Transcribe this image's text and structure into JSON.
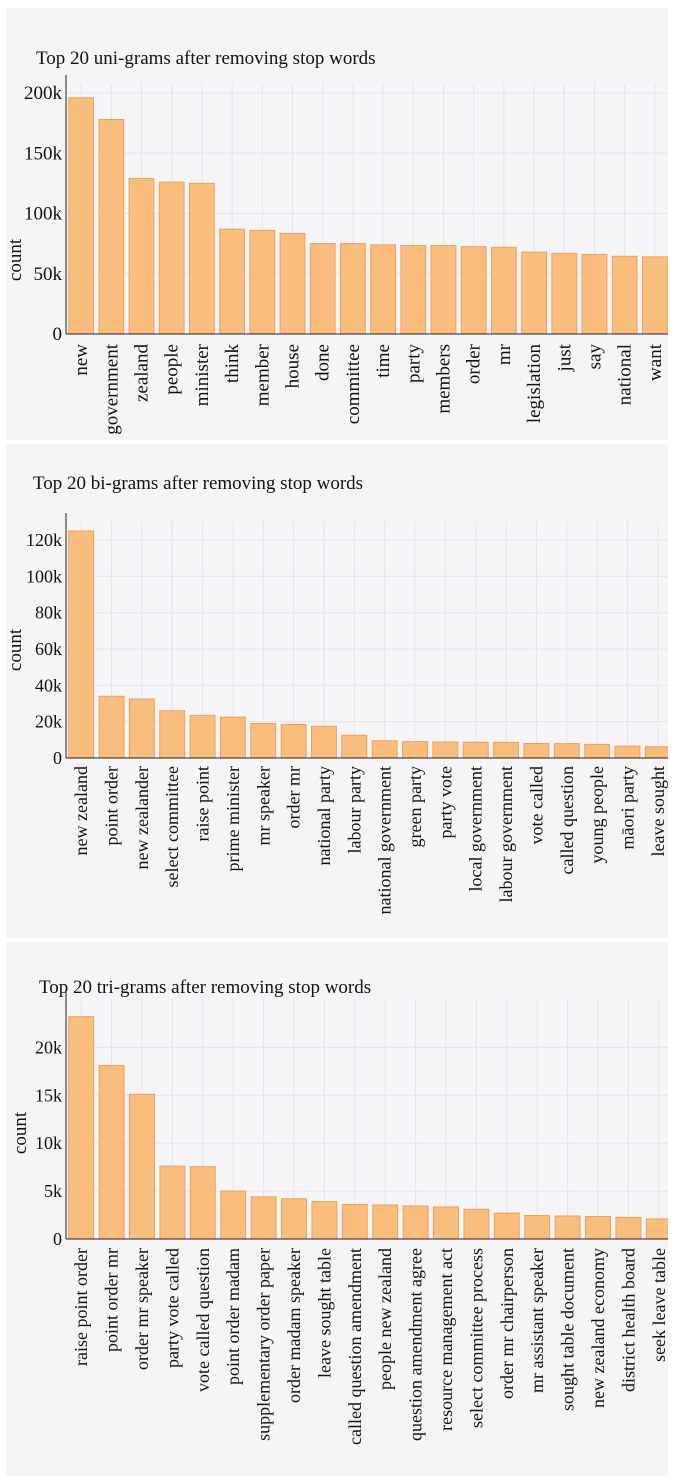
{
  "chart_data": [
    {
      "type": "bar",
      "title": "Top 20 uni-grams after removing stop words",
      "xlabel": "",
      "ylabel": "count",
      "ylim": [
        0,
        200000
      ],
      "yticks": [
        0,
        50000,
        100000,
        150000,
        200000
      ],
      "ytick_labels": [
        "0",
        "50k",
        "100k",
        "150k",
        "200k"
      ],
      "grid": true,
      "bar_color": "#f9bd7e",
      "categories": [
        "new",
        "government",
        "zealand",
        "people",
        "minister",
        "think",
        "member",
        "house",
        "done",
        "committee",
        "time",
        "party",
        "members",
        "order",
        "mr",
        "legislation",
        "just",
        "say",
        "national",
        "want"
      ],
      "values": [
        196000,
        178000,
        129000,
        126000,
        125000,
        87000,
        86000,
        83500,
        75000,
        75000,
        74000,
        73500,
        73500,
        72500,
        72000,
        68000,
        67000,
        66000,
        64500,
        64000
      ]
    },
    {
      "type": "bar",
      "title": "Top 20 bi-grams after removing stop words",
      "xlabel": "",
      "ylabel": "count",
      "ylim": [
        0,
        125000
      ],
      "yticks": [
        0,
        20000,
        40000,
        60000,
        80000,
        100000,
        120000
      ],
      "ytick_labels": [
        "0",
        "20k",
        "40k",
        "60k",
        "80k",
        "100k",
        "120k"
      ],
      "grid": true,
      "bar_color": "#f9bd7e",
      "categories": [
        "new zealand",
        "point order",
        "new zealander",
        "select committee",
        "raise point",
        "prime minister",
        "mr speaker",
        "order mr",
        "national party",
        "labour party",
        "national government",
        "green party",
        "party vote",
        "local government",
        "labour government",
        "vote called",
        "called question",
        "young people",
        "māori party",
        "leave sought"
      ],
      "values": [
        125000,
        34000,
        32500,
        26000,
        23500,
        22500,
        19000,
        18500,
        17500,
        12500,
        9500,
        9000,
        8800,
        8700,
        8600,
        8000,
        7900,
        7500,
        6500,
        6200
      ]
    },
    {
      "type": "bar",
      "title": "Top 20 tri-grams after removing stop words",
      "xlabel": "",
      "ylabel": "count",
      "ylim": [
        0,
        24000
      ],
      "yticks": [
        0,
        5000,
        10000,
        15000,
        20000
      ],
      "ytick_labels": [
        "0",
        "5k",
        "10k",
        "15k",
        "20k"
      ],
      "grid": true,
      "bar_color": "#f9bd7e",
      "categories": [
        "raise point order",
        "point order mr",
        "order mr speaker",
        "party vote called",
        "vote called question",
        "point order madam",
        "supplementary order paper",
        "order madam speaker",
        "leave sought table",
        "called question amendment",
        "people new zealand",
        "question amendment agree",
        "resource management act",
        "select committee process",
        "order mr chairperson",
        "mr assistant speaker",
        "sought table document",
        "new zealand economy",
        "district health board",
        "seek leave table"
      ],
      "values": [
        23200,
        18100,
        15100,
        7600,
        7550,
        5000,
        4400,
        4200,
        3900,
        3600,
        3550,
        3450,
        3350,
        3100,
        2700,
        2450,
        2400,
        2350,
        2250,
        2100
      ]
    }
  ]
}
